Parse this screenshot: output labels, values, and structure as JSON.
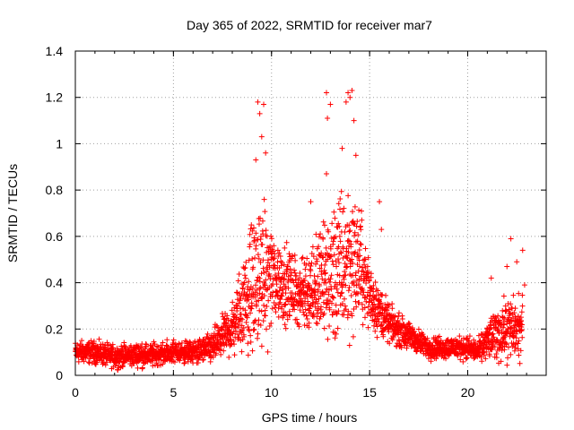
{
  "chart_data": {
    "type": "scatter",
    "title": "Day 365 of 2022, SRMTID for receiver mar7",
    "xlabel": "GPS time / hours",
    "ylabel": "SRMTID / TECUs",
    "xlim": [
      0,
      24
    ],
    "ylim": [
      0,
      1.4
    ],
    "xticks": [
      0,
      5,
      10,
      15,
      20
    ],
    "yticks": [
      0,
      0.2,
      0.4,
      0.6,
      0.8,
      1,
      1.2,
      1.4
    ],
    "ytick_labels": [
      "0",
      "0.2",
      "0.4",
      "0.6",
      "0.8",
      "1",
      "1.2",
      "1.4"
    ],
    "grid": true,
    "marker": "+",
    "color": "#ff0000",
    "time_resolution_hours": 0.0083,
    "time_range": [
      0,
      22.8
    ],
    "envelope": {
      "hours": [
        0,
        1,
        2,
        3,
        4,
        5,
        6,
        7,
        7.5,
        8,
        8.5,
        9,
        9.5,
        10,
        10.5,
        11,
        11.5,
        12,
        12.5,
        13,
        13.5,
        14,
        14.5,
        15,
        15.5,
        16,
        17,
        18,
        19,
        20,
        20.5,
        21,
        21.5,
        22,
        22.8
      ],
      "center": [
        0.1,
        0.1,
        0.08,
        0.09,
        0.09,
        0.1,
        0.1,
        0.12,
        0.17,
        0.2,
        0.3,
        0.38,
        0.42,
        0.43,
        0.4,
        0.38,
        0.35,
        0.38,
        0.4,
        0.42,
        0.45,
        0.5,
        0.48,
        0.35,
        0.28,
        0.22,
        0.17,
        0.12,
        0.12,
        0.12,
        0.1,
        0.15,
        0.18,
        0.2,
        0.2
      ],
      "spread": [
        0.05,
        0.05,
        0.05,
        0.05,
        0.05,
        0.05,
        0.05,
        0.07,
        0.09,
        0.12,
        0.2,
        0.3,
        0.3,
        0.25,
        0.18,
        0.16,
        0.15,
        0.2,
        0.25,
        0.3,
        0.35,
        0.35,
        0.25,
        0.15,
        0.12,
        0.08,
        0.06,
        0.05,
        0.05,
        0.05,
        0.05,
        0.08,
        0.12,
        0.14,
        0.14
      ]
    },
    "notable_points": [
      {
        "x": 9.3,
        "y": 1.18
      },
      {
        "x": 9.4,
        "y": 1.13
      },
      {
        "x": 9.6,
        "y": 1.17
      },
      {
        "x": 9.5,
        "y": 1.03
      },
      {
        "x": 9.7,
        "y": 0.96
      },
      {
        "x": 9.2,
        "y": 0.93
      },
      {
        "x": 12.8,
        "y": 1.22
      },
      {
        "x": 12.85,
        "y": 1.11
      },
      {
        "x": 13.0,
        "y": 1.17
      },
      {
        "x": 13.9,
        "y": 1.22
      },
      {
        "x": 14.0,
        "y": 1.2
      },
      {
        "x": 14.1,
        "y": 1.23
      },
      {
        "x": 13.8,
        "y": 1.18
      },
      {
        "x": 14.2,
        "y": 1.1
      },
      {
        "x": 13.6,
        "y": 0.98
      },
      {
        "x": 14.3,
        "y": 0.95
      },
      {
        "x": 12.8,
        "y": 0.87
      },
      {
        "x": 12.0,
        "y": 0.75
      },
      {
        "x": 15.5,
        "y": 0.75
      },
      {
        "x": 15.6,
        "y": 0.63
      },
      {
        "x": 22.2,
        "y": 0.59
      },
      {
        "x": 22.8,
        "y": 0.54
      },
      {
        "x": 22.5,
        "y": 0.49
      },
      {
        "x": 21.2,
        "y": 0.42
      },
      {
        "x": 22.0,
        "y": 0.47
      },
      {
        "x": 22.9,
        "y": 0.39
      }
    ]
  }
}
